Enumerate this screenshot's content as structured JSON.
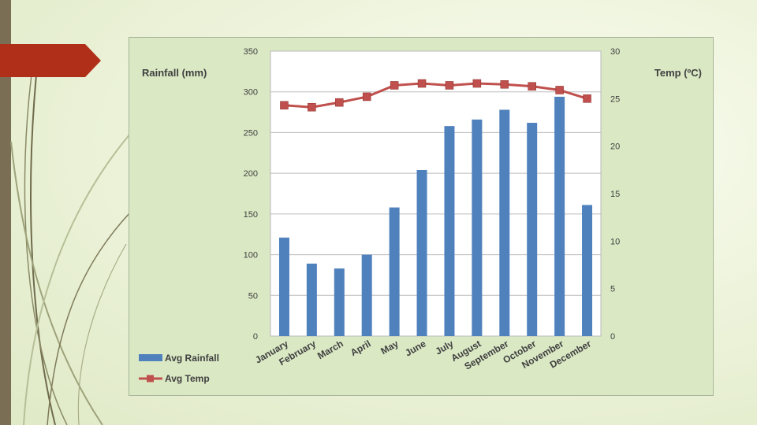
{
  "slide": {
    "accent_color": "#b02f18",
    "sidebar_color": "#7a6f55"
  },
  "chart_data": {
    "type": "bar+line",
    "categories": [
      "January",
      "February",
      "March",
      "April",
      "May",
      "June",
      "July",
      "August",
      "September",
      "October",
      "November",
      "December"
    ],
    "series": [
      {
        "name": "Avg Rainfall",
        "kind": "bar",
        "axis": "left",
        "color": "#4f81bd",
        "values": [
          121,
          89,
          83,
          100,
          158,
          204,
          258,
          266,
          278,
          262,
          294,
          161
        ]
      },
      {
        "name": "Avg Temp",
        "kind": "line",
        "axis": "right",
        "color": "#c0504d",
        "values": [
          24.3,
          24.1,
          24.6,
          25.2,
          26.4,
          26.6,
          26.4,
          26.6,
          26.5,
          26.3,
          25.9,
          25.0
        ]
      }
    ],
    "ylabel_left": "Rainfall (mm)",
    "ylabel_right": "Temp (ºC)",
    "ylim_left": [
      0,
      350
    ],
    "yticks_left": [
      "0",
      "50",
      "100",
      "150",
      "200",
      "250",
      "300",
      "350"
    ],
    "ylim_right": [
      0,
      30
    ],
    "yticks_right": [
      "0",
      "5",
      "10",
      "15",
      "20",
      "25",
      "30"
    ],
    "legend": [
      "Avg Rainfall",
      "Avg Temp"
    ],
    "legend_position": "bottom-left",
    "grid": true
  }
}
